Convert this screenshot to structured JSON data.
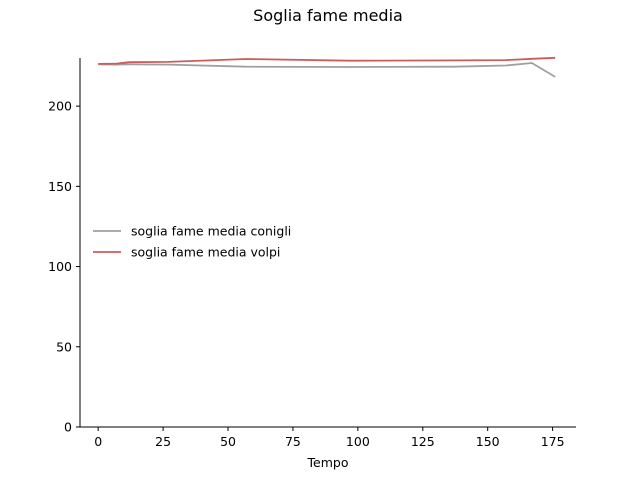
{
  "chart_data": {
    "type": "line",
    "title": "Soglia fame media",
    "xlabel": "Tempo",
    "ylabel": "",
    "xlim": [
      -7,
      184
    ],
    "ylim": [
      0,
      230
    ],
    "xticks": [
      0,
      25,
      50,
      75,
      100,
      125,
      150,
      175
    ],
    "yticks": [
      0,
      50,
      100,
      150,
      200
    ],
    "legend_position": "center-left",
    "grid": false,
    "series": [
      {
        "name": "soglia fame media conigli",
        "color": "#a0a0a0",
        "x": [
          0,
          7,
          12,
          27,
          57,
          97,
          137,
          157,
          167,
          176
        ],
        "y": [
          226.0,
          225.9,
          226.1,
          225.9,
          224.6,
          224.4,
          224.6,
          225.3,
          226.9,
          218.2
        ]
      },
      {
        "name": "soglia fame media volpi",
        "color": "#cd5c5c",
        "x": [
          0,
          7,
          12,
          27,
          57,
          97,
          137,
          157,
          167,
          176
        ],
        "y": [
          226.3,
          226.5,
          227.4,
          227.6,
          229.4,
          228.3,
          228.5,
          228.7,
          229.5,
          230.1
        ]
      }
    ]
  }
}
